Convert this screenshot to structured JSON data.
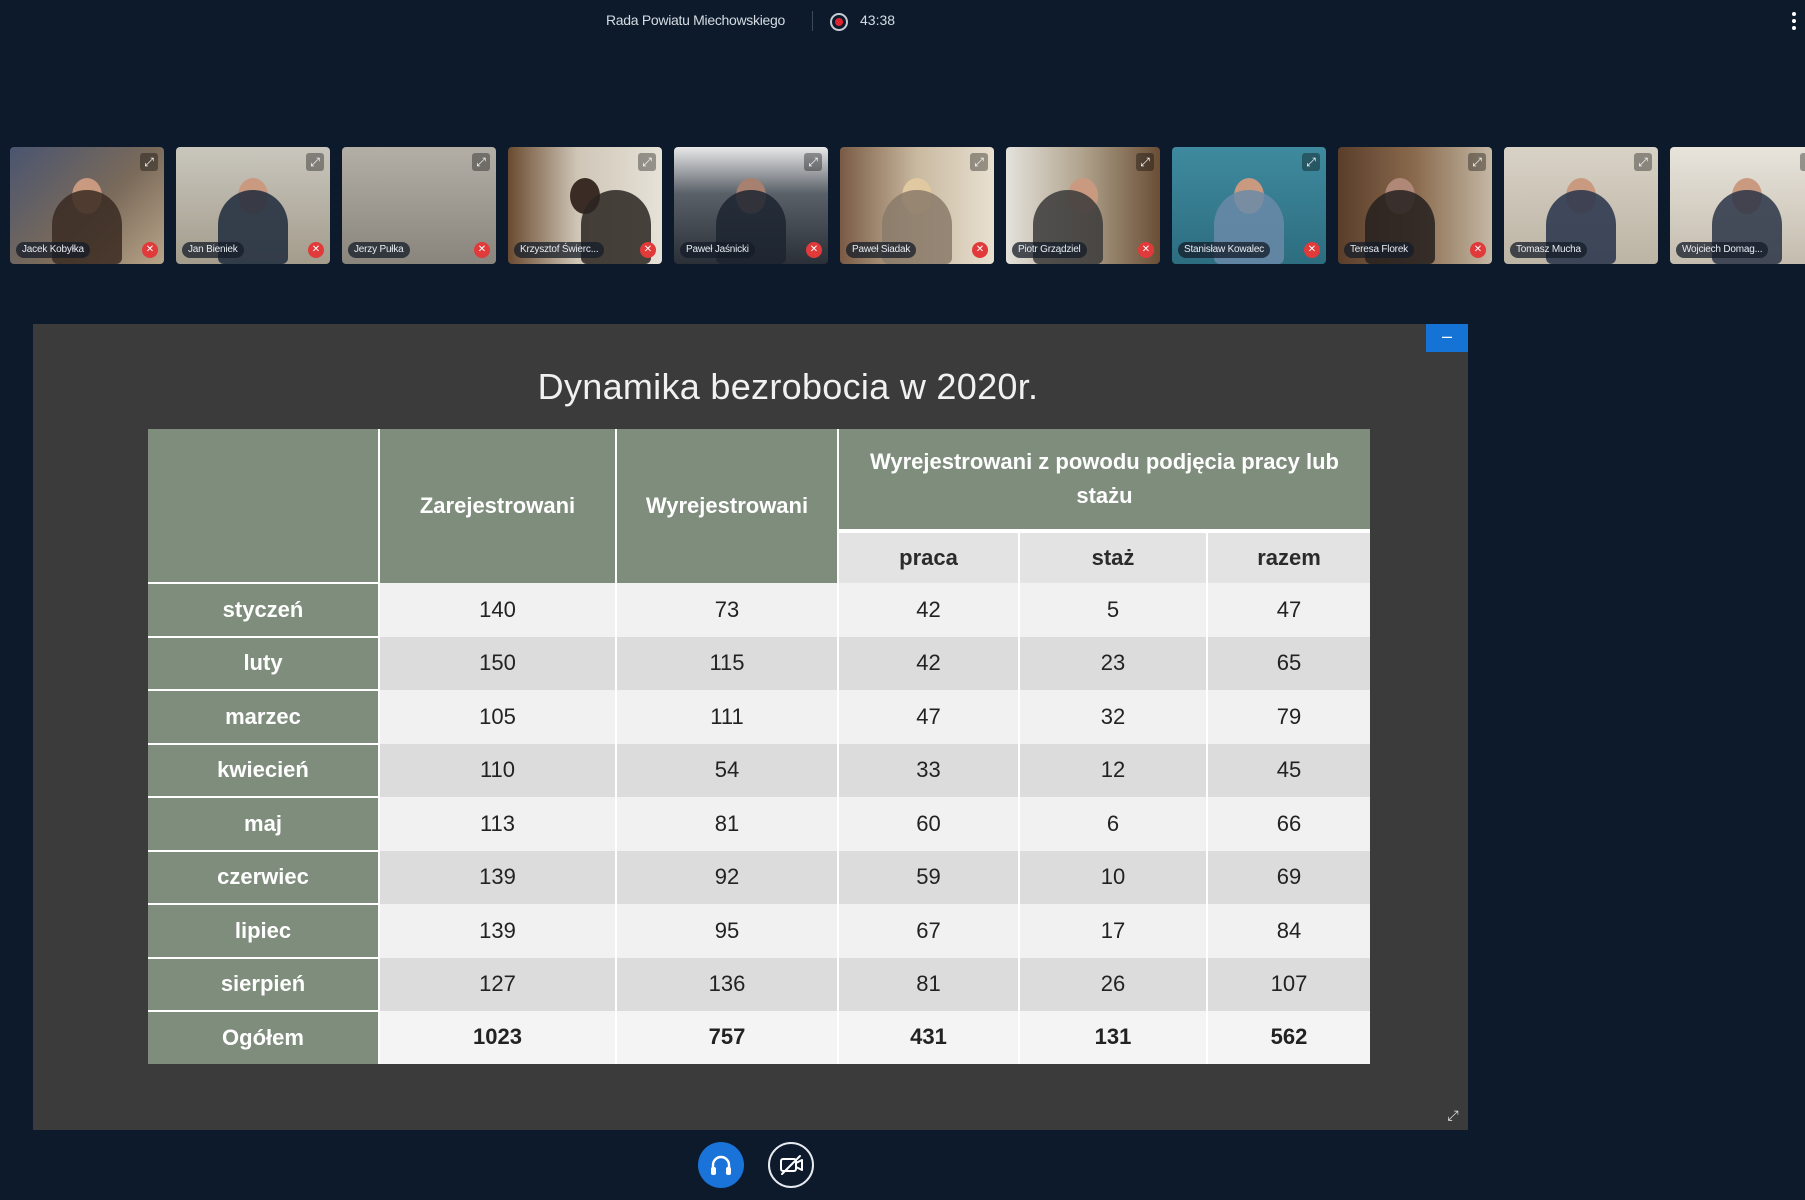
{
  "topbar": {
    "meeting_title": "Rada Powiatu Miechowskiego",
    "timer": "43:38",
    "recording": true
  },
  "participants": [
    {
      "name": "Jacek Kobyłka",
      "muted": true
    },
    {
      "name": "Jan Bieniek",
      "muted": true
    },
    {
      "name": "Jerzy Pułka",
      "muted": true
    },
    {
      "name": "Krzysztof Świerc...",
      "muted": true
    },
    {
      "name": "Paweł Jaśnicki",
      "muted": true
    },
    {
      "name": "Paweł Siadak",
      "muted": true
    },
    {
      "name": "Piotr Grządziel",
      "muted": true
    },
    {
      "name": "Stanisław Kowalec",
      "muted": true
    },
    {
      "name": "Teresa Florek",
      "muted": true
    },
    {
      "name": "Tomasz Mucha",
      "muted": false
    },
    {
      "name": "Wojciech Domag...",
      "muted": false
    }
  ],
  "icons": {
    "expand": "expand-icon",
    "mute": "mic-off-icon",
    "audio": "headphones-icon",
    "video": "video-off-icon",
    "minimize": "minimize-icon",
    "more": "more-vertical-icon"
  },
  "colors": {
    "background": "#0c1a2c",
    "accent": "#1a73d9",
    "table_header": "#7f8d7d",
    "muted_badge": "#e13a3a",
    "recording": "#e0222e"
  },
  "slide": {
    "title": "Dynamika bezrobocia w 2020r.",
    "headers": {
      "registered": "Zarejestrowani",
      "deregistered": "Wyrejestrowani",
      "group": "Wyrejestrowani z powodu podjęcia pracy lub stażu",
      "work": "praca",
      "internship": "staż",
      "total": "razem"
    },
    "rows": [
      {
        "month": "styczeń",
        "values": [
          "140",
          "73",
          "42",
          "5",
          "47"
        ]
      },
      {
        "month": "luty",
        "values": [
          "150",
          "115",
          "42",
          "23",
          "65"
        ]
      },
      {
        "month": "marzec",
        "values": [
          "105",
          "111",
          "47",
          "32",
          "79"
        ]
      },
      {
        "month": "kwiecień",
        "values": [
          "110",
          "54",
          "33",
          "12",
          "45"
        ]
      },
      {
        "month": "maj",
        "values": [
          "113",
          "81",
          "60",
          "6",
          "66"
        ]
      },
      {
        "month": "czerwiec",
        "values": [
          "139",
          "92",
          "59",
          "10",
          "69"
        ]
      },
      {
        "month": "lipiec",
        "values": [
          "139",
          "95",
          "67",
          "17",
          "84"
        ]
      },
      {
        "month": "sierpień",
        "values": [
          "127",
          "136",
          "81",
          "26",
          "107"
        ]
      }
    ],
    "total": {
      "label": "Ogółem",
      "values": [
        "1023",
        "757",
        "431",
        "131",
        "562"
      ]
    }
  }
}
